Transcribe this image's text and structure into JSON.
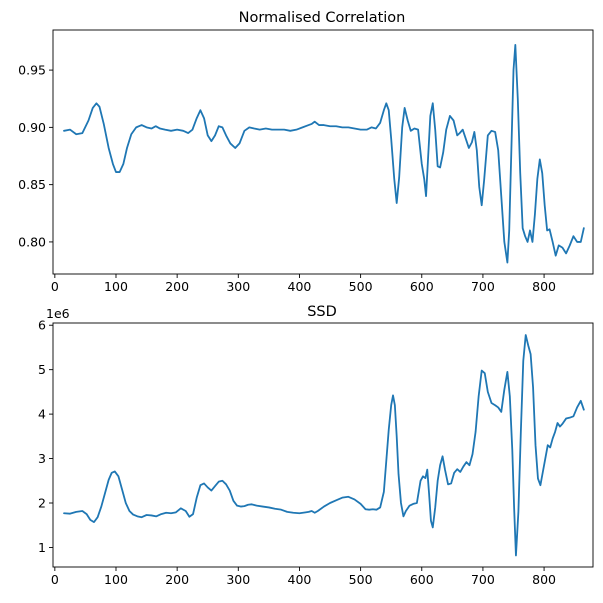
{
  "chart_data": [
    {
      "type": "line",
      "title": "Normalised Correlation",
      "xlabel": "",
      "ylabel": "",
      "xlim": [
        -3,
        880
      ],
      "ylim": [
        0.772,
        0.985
      ],
      "xticks": [
        0,
        100,
        200,
        300,
        400,
        500,
        600,
        700,
        800
      ],
      "xtick_labels": [
        "0",
        "100",
        "200",
        "300",
        "400",
        "500",
        "600",
        "700",
        "800"
      ],
      "yticks": [
        0.8,
        0.85,
        0.9,
        0.95
      ],
      "ytick_labels": [
        "0.80",
        "0.85",
        "0.90",
        "0.95"
      ],
      "grid": false,
      "series": [
        {
          "color": "#1f77b4",
          "x": [
            15,
            25,
            35,
            45,
            55,
            62,
            68,
            73,
            80,
            88,
            95,
            100,
            106,
            112,
            118,
            125,
            133,
            142,
            150,
            158,
            165,
            172,
            180,
            190,
            200,
            210,
            218,
            225,
            232,
            238,
            244,
            250,
            256,
            262,
            268,
            274,
            280,
            287,
            295,
            302,
            310,
            318,
            326,
            335,
            345,
            355,
            365,
            375,
            385,
            395,
            405,
            415,
            420,
            425,
            432,
            440,
            450,
            460,
            470,
            480,
            490,
            500,
            510,
            518,
            525,
            532,
            538,
            542,
            546,
            550,
            555,
            559,
            563,
            568,
            572,
            577,
            582,
            588,
            594,
            600,
            604,
            607,
            610,
            614,
            618,
            622,
            626,
            630,
            635,
            640,
            646,
            652,
            658,
            662,
            667,
            672,
            677,
            682,
            686,
            690,
            694,
            698,
            702,
            708,
            714,
            720,
            725,
            730,
            735,
            740,
            743,
            747,
            750,
            753,
            757,
            761,
            765,
            769,
            773,
            777,
            781,
            785,
            789,
            793,
            797,
            801,
            805,
            809,
            814,
            819,
            824,
            830,
            836,
            842,
            848,
            854,
            860,
            865
          ],
          "y": [
            0.897,
            0.898,
            0.894,
            0.895,
            0.906,
            0.917,
            0.921,
            0.918,
            0.903,
            0.882,
            0.868,
            0.861,
            0.861,
            0.868,
            0.882,
            0.894,
            0.9,
            0.902,
            0.9,
            0.899,
            0.901,
            0.899,
            0.898,
            0.897,
            0.898,
            0.897,
            0.895,
            0.898,
            0.908,
            0.915,
            0.908,
            0.893,
            0.888,
            0.893,
            0.901,
            0.9,
            0.893,
            0.886,
            0.882,
            0.886,
            0.897,
            0.9,
            0.899,
            0.898,
            0.899,
            0.898,
            0.898,
            0.898,
            0.897,
            0.898,
            0.9,
            0.902,
            0.903,
            0.905,
            0.902,
            0.902,
            0.901,
            0.901,
            0.9,
            0.9,
            0.899,
            0.898,
            0.898,
            0.9,
            0.899,
            0.904,
            0.915,
            0.921,
            0.915,
            0.89,
            0.855,
            0.834,
            0.856,
            0.9,
            0.917,
            0.906,
            0.897,
            0.899,
            0.898,
            0.868,
            0.855,
            0.84,
            0.87,
            0.91,
            0.921,
            0.898,
            0.866,
            0.865,
            0.878,
            0.898,
            0.91,
            0.906,
            0.893,
            0.895,
            0.898,
            0.89,
            0.882,
            0.887,
            0.896,
            0.88,
            0.848,
            0.832,
            0.854,
            0.893,
            0.897,
            0.896,
            0.88,
            0.84,
            0.8,
            0.782,
            0.81,
            0.89,
            0.95,
            0.972,
            0.925,
            0.86,
            0.812,
            0.805,
            0.8,
            0.81,
            0.8,
            0.824,
            0.855,
            0.872,
            0.86,
            0.832,
            0.81,
            0.811,
            0.8,
            0.788,
            0.797,
            0.795,
            0.79,
            0.797,
            0.805,
            0.8,
            0.8,
            0.812
          ]
        }
      ]
    },
    {
      "type": "line",
      "title": "SSD",
      "xlabel": "",
      "ylabel": "",
      "offset_label": "1e6",
      "xlim": [
        -3,
        880
      ],
      "ylim": [
        0.56,
        6.05
      ],
      "xticks": [
        0,
        100,
        200,
        300,
        400,
        500,
        600,
        700,
        800
      ],
      "xtick_labels": [
        "0",
        "100",
        "200",
        "300",
        "400",
        "500",
        "600",
        "700",
        "800"
      ],
      "yticks": [
        1,
        2,
        3,
        4,
        5,
        6
      ],
      "ytick_labels": [
        "1",
        "2",
        "3",
        "4",
        "5",
        "6"
      ],
      "grid": false,
      "series": [
        {
          "color": "#1f77b4",
          "x": [
            15,
            25,
            35,
            45,
            52,
            58,
            64,
            70,
            76,
            82,
            88,
            93,
            98,
            104,
            110,
            116,
            122,
            128,
            135,
            142,
            150,
            158,
            166,
            174,
            182,
            190,
            198,
            206,
            214,
            220,
            226,
            232,
            238,
            244,
            250,
            256,
            262,
            268,
            274,
            280,
            286,
            292,
            298,
            304,
            310,
            316,
            322,
            330,
            340,
            350,
            360,
            370,
            380,
            390,
            400,
            410,
            415,
            420,
            425,
            430,
            440,
            450,
            460,
            470,
            480,
            490,
            500,
            508,
            514,
            520,
            526,
            532,
            538,
            542,
            546,
            550,
            553,
            556,
            559,
            562,
            566,
            570,
            574,
            580,
            586,
            592,
            598,
            602,
            606,
            609,
            612,
            615,
            618,
            622,
            626,
            630,
            634,
            638,
            643,
            648,
            653,
            658,
            663,
            668,
            673,
            678,
            683,
            688,
            693,
            698,
            703,
            708,
            714,
            720,
            725,
            730,
            735,
            740,
            744,
            748,
            751,
            754,
            758,
            762,
            766,
            770,
            774,
            778,
            782,
            786,
            790,
            794,
            798,
            802,
            806,
            810,
            814,
            818,
            822,
            826,
            830,
            836,
            842,
            848,
            854,
            860,
            865
          ],
          "y": [
            1.77,
            1.76,
            1.8,
            1.82,
            1.75,
            1.62,
            1.57,
            1.68,
            1.92,
            2.22,
            2.52,
            2.68,
            2.71,
            2.6,
            2.3,
            2.0,
            1.82,
            1.74,
            1.7,
            1.68,
            1.73,
            1.72,
            1.7,
            1.75,
            1.78,
            1.77,
            1.79,
            1.88,
            1.82,
            1.69,
            1.75,
            2.12,
            2.4,
            2.44,
            2.35,
            2.28,
            2.38,
            2.48,
            2.5,
            2.42,
            2.28,
            2.05,
            1.94,
            1.92,
            1.93,
            1.96,
            1.97,
            1.94,
            1.92,
            1.9,
            1.87,
            1.85,
            1.8,
            1.78,
            1.77,
            1.79,
            1.8,
            1.82,
            1.78,
            1.82,
            1.92,
            2.0,
            2.06,
            2.12,
            2.14,
            2.08,
            1.98,
            1.86,
            1.85,
            1.86,
            1.85,
            1.9,
            2.25,
            2.95,
            3.65,
            4.2,
            4.42,
            4.2,
            3.5,
            2.65,
            2.0,
            1.7,
            1.82,
            1.94,
            1.98,
            2.0,
            2.5,
            2.6,
            2.56,
            2.75,
            2.2,
            1.6,
            1.45,
            1.9,
            2.5,
            2.85,
            3.05,
            2.75,
            2.42,
            2.44,
            2.68,
            2.76,
            2.7,
            2.82,
            2.92,
            2.85,
            3.1,
            3.6,
            4.4,
            4.98,
            4.92,
            4.5,
            4.25,
            4.2,
            4.15,
            4.05,
            4.55,
            4.95,
            4.4,
            3.2,
            1.9,
            0.82,
            1.8,
            3.6,
            5.2,
            5.78,
            5.55,
            5.35,
            4.6,
            3.3,
            2.55,
            2.4,
            2.7,
            3.0,
            3.3,
            3.25,
            3.45,
            3.6,
            3.8,
            3.72,
            3.78,
            3.9,
            3.92,
            3.95,
            4.15,
            4.3,
            4.1
          ]
        }
      ]
    }
  ]
}
